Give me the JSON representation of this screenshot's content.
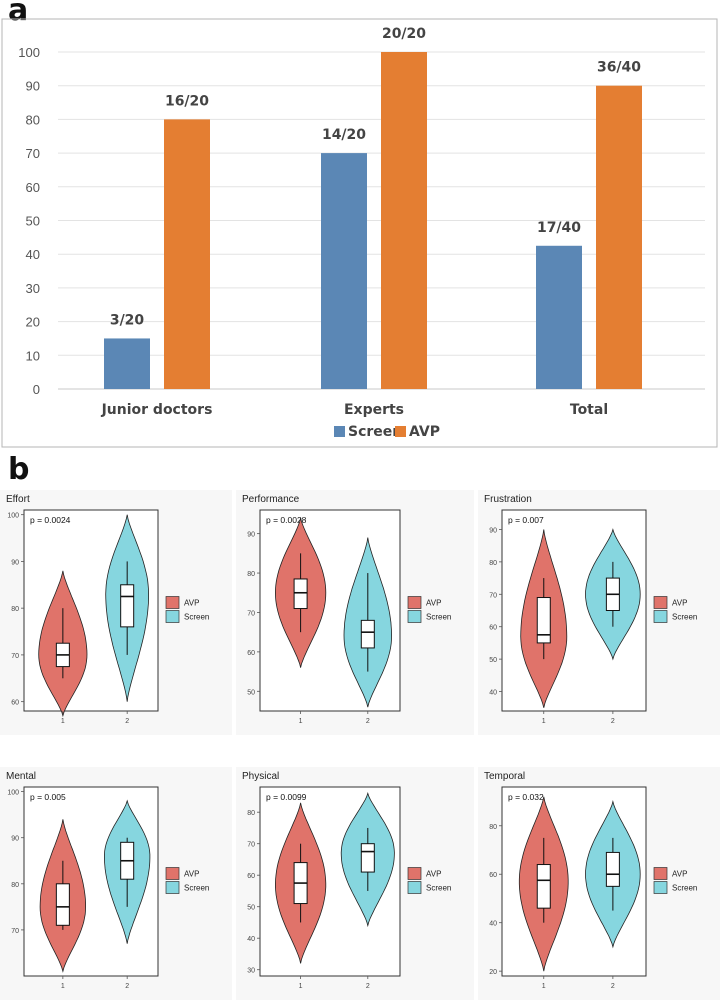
{
  "panels": {
    "a": "a",
    "b": "b"
  },
  "colors": {
    "screen": "#5b87b5",
    "avp": "#e47e32",
    "violin_avp": "#e0736a",
    "violin_screen": "#86d6df"
  },
  "chart_data": [
    {
      "type": "bar",
      "title": "",
      "categories": [
        "Junior doctors",
        "Experts",
        "Total"
      ],
      "series": [
        {
          "name": "Screen",
          "values": [
            15,
            70,
            42.5
          ],
          "labels": [
            "3/20",
            "14/20",
            "17/40"
          ]
        },
        {
          "name": "AVP",
          "values": [
            80,
            100,
            90
          ],
          "labels": [
            "16/20",
            "20/20",
            "36/40"
          ]
        }
      ],
      "ylim": [
        0,
        100
      ],
      "yticks": [
        0,
        10,
        20,
        30,
        40,
        50,
        60,
        70,
        80,
        90,
        100
      ],
      "legend": [
        "Screen",
        "AVP"
      ],
      "legend_position": "bottom-center",
      "grid": true
    },
    {
      "type": "violin",
      "title": "Effort",
      "pvalue": "p = 0.0024",
      "xticks": [
        "1",
        "2"
      ],
      "yticks": [
        60,
        70,
        80,
        90,
        100
      ],
      "ylim": [
        58,
        101
      ],
      "legend": [
        "AVP",
        "Screen"
      ],
      "groups": [
        {
          "name": "AVP",
          "min": 65,
          "q1": 67.5,
          "median": 70,
          "q3": 72.5,
          "max": 80,
          "vmin": 57,
          "vmax": 88,
          "mode": 70,
          "width": 0.9
        },
        {
          "name": "Screen",
          "min": 70,
          "q1": 76,
          "median": 82.5,
          "q3": 85,
          "max": 90,
          "vmin": 60,
          "vmax": 100,
          "mode": 83,
          "width": 0.8
        }
      ]
    },
    {
      "type": "violin",
      "title": "Performance",
      "pvalue": "p = 0.0028",
      "xticks": [
        "1",
        "2"
      ],
      "yticks": [
        50,
        60,
        70,
        80,
        90
      ],
      "ylim": [
        45,
        96
      ],
      "legend": [
        "AVP",
        "Screen"
      ],
      "groups": [
        {
          "name": "AVP",
          "min": 65,
          "q1": 71,
          "median": 75,
          "q3": 78.5,
          "max": 85,
          "vmin": 56,
          "vmax": 94,
          "mode": 75,
          "width": 0.9
        },
        {
          "name": "Screen",
          "min": 55,
          "q1": 61,
          "median": 65,
          "q3": 68,
          "max": 80,
          "vmin": 46,
          "vmax": 89,
          "mode": 64,
          "width": 0.85
        }
      ]
    },
    {
      "type": "violin",
      "title": "Frustration",
      "pvalue": "p = 0.007",
      "xticks": [
        "1",
        "2"
      ],
      "yticks": [
        40,
        50,
        60,
        70,
        80,
        90
      ],
      "ylim": [
        34,
        96
      ],
      "legend": [
        "AVP",
        "Screen"
      ],
      "groups": [
        {
          "name": "AVP",
          "min": 50,
          "q1": 55,
          "median": 57.5,
          "q3": 69,
          "max": 75,
          "vmin": 35,
          "vmax": 90,
          "mode": 57,
          "width": 0.8
        },
        {
          "name": "Screen",
          "min": 60,
          "q1": 65,
          "median": 70,
          "q3": 75,
          "max": 80,
          "vmin": 50,
          "vmax": 90,
          "mode": 70,
          "width": 0.95
        }
      ]
    },
    {
      "type": "violin",
      "title": "Mental",
      "pvalue": "p = 0.005",
      "xticks": [
        "1",
        "2"
      ],
      "yticks": [
        70,
        80,
        90,
        100
      ],
      "ylim": [
        60,
        101
      ],
      "legend": [
        "AVP",
        "Screen"
      ],
      "groups": [
        {
          "name": "AVP",
          "min": 70,
          "q1": 71,
          "median": 75,
          "q3": 80,
          "max": 85,
          "vmin": 61,
          "vmax": 94,
          "mode": 75,
          "width": 0.85
        },
        {
          "name": "Screen",
          "min": 75,
          "q1": 81,
          "median": 85,
          "q3": 89,
          "max": 90,
          "vmin": 67,
          "vmax": 98,
          "mode": 86,
          "width": 0.85
        }
      ]
    },
    {
      "type": "violin",
      "title": "Physical",
      "pvalue": "p = 0.0099",
      "xticks": [
        "1",
        "2"
      ],
      "yticks": [
        30,
        40,
        50,
        60,
        70,
        80
      ],
      "ylim": [
        28,
        88
      ],
      "legend": [
        "AVP",
        "Screen"
      ],
      "groups": [
        {
          "name": "AVP",
          "min": 45,
          "q1": 51,
          "median": 57.5,
          "q3": 64,
          "max": 70,
          "vmin": 32,
          "vmax": 83,
          "mode": 57,
          "width": 0.9
        },
        {
          "name": "Screen",
          "min": 55,
          "q1": 61,
          "median": 67.5,
          "q3": 70,
          "max": 75,
          "vmin": 44,
          "vmax": 86,
          "mode": 67,
          "width": 0.95
        }
      ]
    },
    {
      "type": "violin",
      "title": "Temporal",
      "pvalue": "p = 0.032",
      "xticks": [
        "1",
        "2"
      ],
      "yticks": [
        20,
        40,
        60,
        80
      ],
      "ylim": [
        18,
        96
      ],
      "legend": [
        "AVP",
        "Screen"
      ],
      "groups": [
        {
          "name": "AVP",
          "min": 40,
          "q1": 46,
          "median": 57.5,
          "q3": 64,
          "max": 75,
          "vmin": 20,
          "vmax": 92,
          "mode": 57,
          "width": 0.85
        },
        {
          "name": "Screen",
          "min": 45,
          "q1": 55,
          "median": 60,
          "q3": 69,
          "max": 75,
          "vmin": 30,
          "vmax": 90,
          "mode": 60,
          "width": 0.95
        }
      ]
    }
  ]
}
